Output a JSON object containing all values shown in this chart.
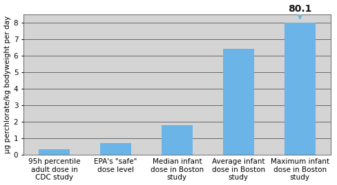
{
  "categories": [
    "95h percentile\nadult dose in\nCDC study",
    "EPA's \"safe\"\ndose level",
    "Median infant\ndose in Boston\nstudy",
    "Average infant\ndose in Boston\nstudy",
    "Maximum infant\ndose in Boston\nstudy"
  ],
  "values": [
    0.3,
    0.7,
    1.8,
    6.4,
    8.0
  ],
  "bar_color": "#6ab4e8",
  "plot_bg_color": "#d4d4d4",
  "fig_bg_color": "#ffffff",
  "ylabel": "µg perchlorate/kg bodyweight per day",
  "ylim": [
    0,
    8.5
  ],
  "yticks": [
    0,
    1,
    2,
    3,
    4,
    5,
    6,
    7,
    8
  ],
  "annotation_text": "80.1",
  "annotation_bar_index": 4,
  "annotation_value": 8.0,
  "tick_fontsize": 7.5,
  "ylabel_fontsize": 7.5,
  "bar_width": 0.5,
  "annotation_fontsize": 10,
  "annotation_color": "#1a1a1a",
  "arrow_color": "#6ab4e8"
}
